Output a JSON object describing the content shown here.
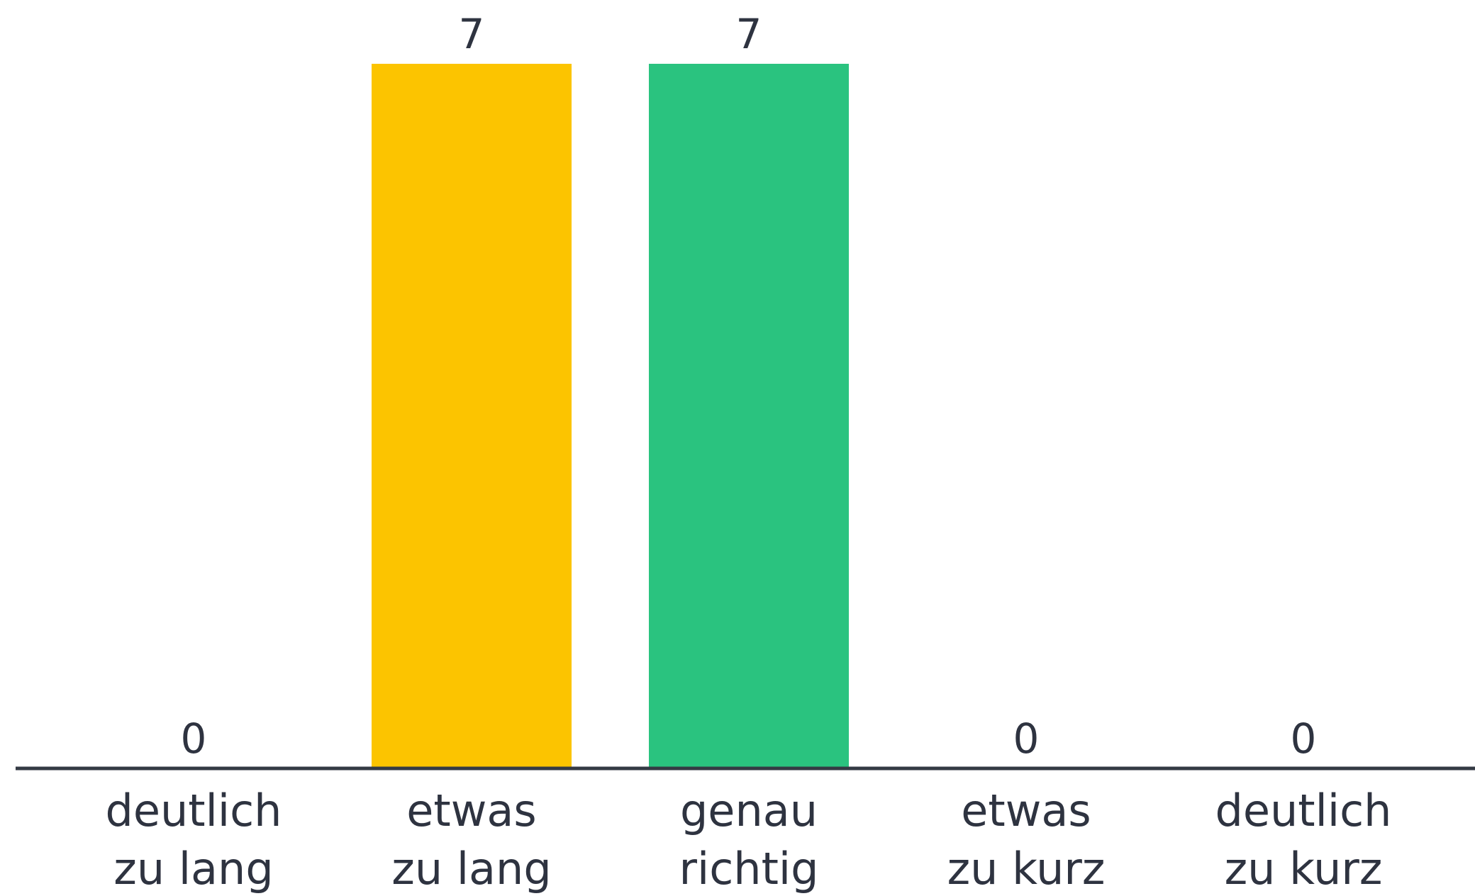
{
  "chart_data": {
    "type": "bar",
    "categories": [
      [
        "deutlich",
        "zu lang"
      ],
      [
        "etwas",
        "zu lang"
      ],
      [
        "genau",
        "richtig"
      ],
      [
        "etwas",
        "zu kurz"
      ],
      [
        "deutlich",
        "zu kurz"
      ]
    ],
    "values": [
      0,
      7,
      7,
      0,
      0
    ],
    "colors": [
      "#e24d3c",
      "#fcc400",
      "#2ac37f",
      "#fcc400",
      "#e24d3c"
    ],
    "ylim": [
      0,
      7
    ],
    "grid": false,
    "legend": "none",
    "axis_color": "#343a44",
    "label_color": "#2e3340"
  }
}
